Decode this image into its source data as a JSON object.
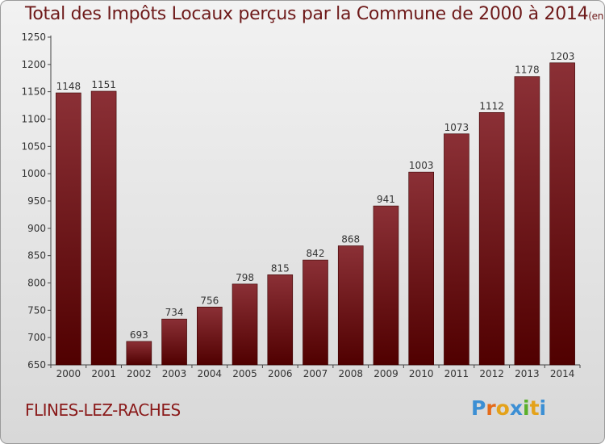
{
  "chart_data": {
    "type": "bar",
    "title": "Total des Impôts Locaux perçus par la Commune de 2000 à 2014",
    "subtitle": "(en milliers d'€)",
    "categories": [
      "2000",
      "2001",
      "2002",
      "2003",
      "2004",
      "2005",
      "2006",
      "2007",
      "2008",
      "2009",
      "2010",
      "2011",
      "2012",
      "2013",
      "2014"
    ],
    "values": [
      1148,
      1151,
      693,
      734,
      756,
      798,
      815,
      842,
      868,
      941,
      1003,
      1073,
      1112,
      1178,
      1203
    ],
    "ylim": [
      650,
      1250
    ],
    "yticks": [
      650,
      700,
      750,
      800,
      850,
      900,
      950,
      1000,
      1050,
      1100,
      1150,
      1200,
      1250
    ],
    "grid": false,
    "bar_color_top": "#8b3036",
    "bar_color_bottom": "#500000"
  },
  "commune": "FLINES-LEZ-RACHES",
  "logo": {
    "letters": [
      "P",
      "r",
      "o",
      "x",
      "i",
      "t",
      "i"
    ],
    "colors": [
      "#3c8fd4",
      "#e46b1a",
      "#e4a21a",
      "#3c8fd4",
      "#5ab02a",
      "#e4a21a",
      "#3c8fd4"
    ]
  }
}
